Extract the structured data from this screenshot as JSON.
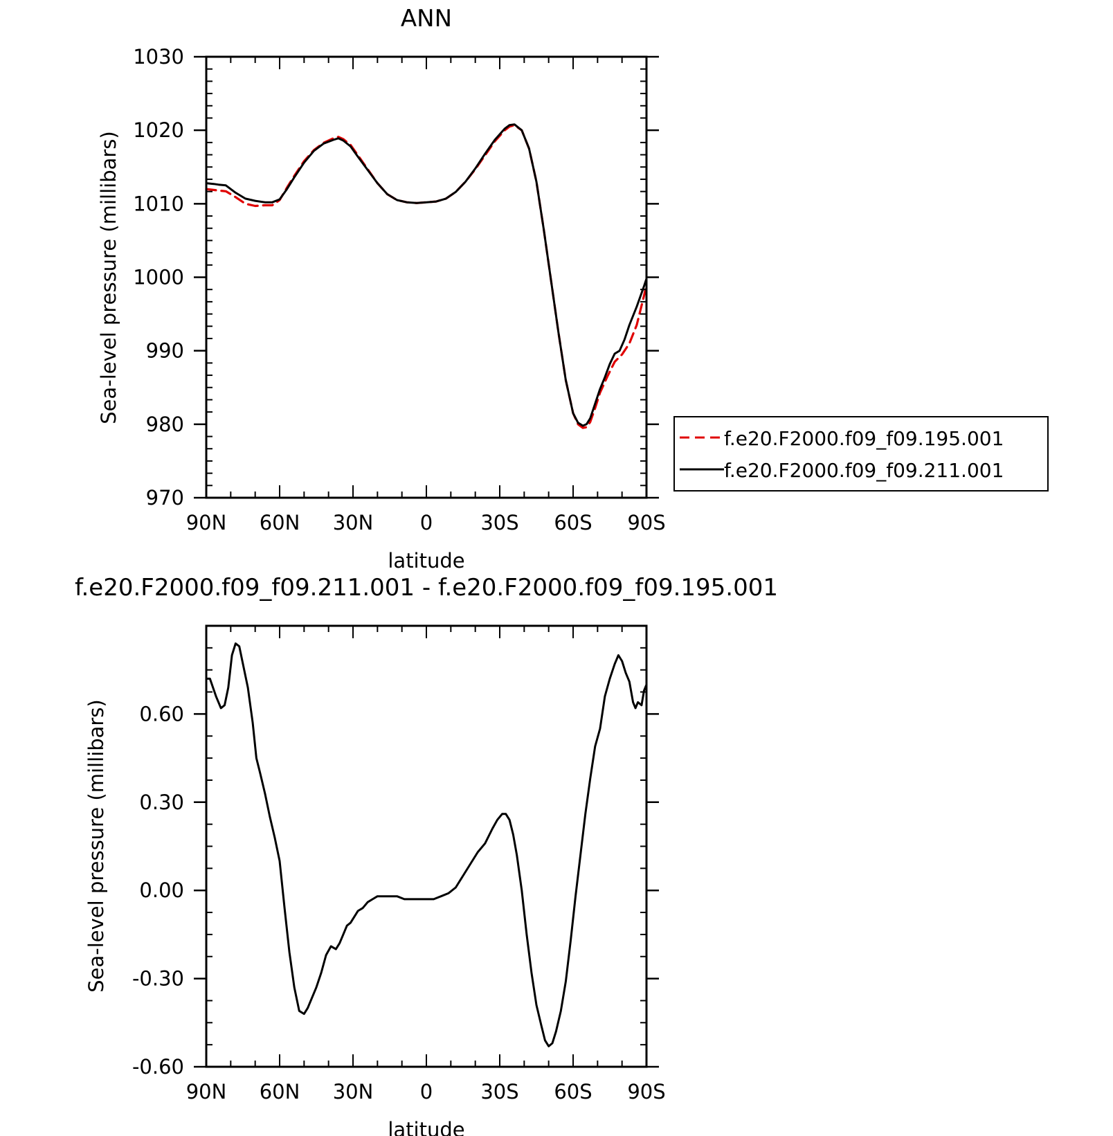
{
  "chart_data": [
    {
      "type": "line",
      "title": "ANN",
      "xlabel": "latitude",
      "ylabel": "Sea-level pressure (millibars)",
      "xlim": [
        90,
        -90
      ],
      "ylim": [
        970,
        1030
      ],
      "xticks": [
        {
          "value": 90,
          "label": "90N"
        },
        {
          "value": 60,
          "label": "60N"
        },
        {
          "value": 30,
          "label": "30N"
        },
        {
          "value": 0,
          "label": "0"
        },
        {
          "value": -30,
          "label": "30S"
        },
        {
          "value": -60,
          "label": "60S"
        },
        {
          "value": -90,
          "label": "90S"
        }
      ],
      "yticks": [
        {
          "value": 1030,
          "label": "1030"
        },
        {
          "value": 1020,
          "label": "1020"
        },
        {
          "value": 1010,
          "label": "1010"
        },
        {
          "value": 1000,
          "label": "1000"
        },
        {
          "value": 990,
          "label": "990"
        },
        {
          "value": 980,
          "label": "980"
        },
        {
          "value": 970,
          "label": "970"
        }
      ],
      "legend_position": "right",
      "series": [
        {
          "name": "f.e20.F2000.f09_f09.195.001",
          "color": "#e00000",
          "dash": "dashed",
          "x": [
            90,
            85,
            82,
            78,
            74,
            70,
            66,
            63,
            60,
            57,
            54,
            50,
            46,
            42,
            38,
            36,
            34,
            31,
            28,
            24,
            20,
            16,
            12,
            8,
            4,
            0,
            -4,
            -8,
            -12,
            -16,
            -20,
            -24,
            -28,
            -32,
            -34,
            -36,
            -39,
            -42,
            -45,
            -48,
            -51,
            -54,
            -57,
            -60,
            -62,
            -64,
            -65.5,
            -67,
            -69,
            -71,
            -74,
            -77,
            -80,
            -83,
            -86,
            -89,
            -90
          ],
          "y": [
            1012.0,
            1011.8,
            1011.7,
            1010.9,
            1010.0,
            1009.7,
            1009.8,
            1009.8,
            1010.5,
            1012.2,
            1013.8,
            1015.8,
            1017.3,
            1018.3,
            1018.9,
            1019.1,
            1018.8,
            1018.0,
            1016.6,
            1014.7,
            1012.8,
            1011.3,
            1010.5,
            1010.2,
            1010.1,
            1010.2,
            1010.3,
            1010.7,
            1011.6,
            1013.0,
            1014.7,
            1016.6,
            1018.5,
            1020.0,
            1020.5,
            1020.7,
            1020.0,
            1017.5,
            1013.0,
            1006.5,
            999.5,
            992.5,
            986.0,
            981.5,
            980.0,
            979.5,
            979.6,
            980.3,
            982.2,
            984.3,
            986.5,
            988.5,
            989.5,
            991.0,
            993.5,
            997.5,
            999.0
          ]
        },
        {
          "name": "f.e20.F2000.f09_f09.211.001",
          "color": "#000000",
          "dash": "solid",
          "x": [
            90,
            87,
            85,
            82,
            78,
            74,
            70,
            66,
            63,
            60,
            57,
            54,
            50,
            46,
            42,
            38,
            36,
            34,
            31,
            28,
            24,
            20,
            16,
            12,
            8,
            4,
            0,
            -4,
            -8,
            -12,
            -16,
            -20,
            -24,
            -28,
            -32,
            -34,
            -36,
            -39,
            -42,
            -45,
            -48,
            -51,
            -54,
            -57,
            -60,
            -62,
            -64,
            -65.5,
            -67,
            -69,
            -71,
            -73,
            -75,
            -77,
            -79,
            -81,
            -83,
            -86,
            -89,
            -90
          ],
          "y": [
            1012.8,
            1012.7,
            1012.6,
            1012.5,
            1011.5,
            1010.7,
            1010.4,
            1010.2,
            1010.2,
            1010.6,
            1012.0,
            1013.6,
            1015.6,
            1017.2,
            1018.2,
            1018.7,
            1018.9,
            1018.6,
            1017.8,
            1016.4,
            1014.6,
            1012.8,
            1011.3,
            1010.5,
            1010.2,
            1010.1,
            1010.2,
            1010.3,
            1010.7,
            1011.6,
            1013.0,
            1014.8,
            1016.8,
            1018.7,
            1020.2,
            1020.7,
            1020.8,
            1020.0,
            1017.5,
            1013.0,
            1006.5,
            999.5,
            992.5,
            986.0,
            981.5,
            980.2,
            979.8,
            980.0,
            980.8,
            982.8,
            984.8,
            986.4,
            988.2,
            989.6,
            990.0,
            991.5,
            993.5,
            996.0,
            998.8,
            999.8
          ]
        }
      ]
    },
    {
      "type": "line",
      "title": "f.e20.F2000.f09_f09.211.001 - f.e20.F2000.f09_f09.195.001",
      "xlabel": "latitude",
      "ylabel": "Sea-level pressure (millibars)",
      "xlim": [
        90,
        -90
      ],
      "ylim": [
        -0.6,
        0.9
      ],
      "xticks": [
        {
          "value": 90,
          "label": "90N"
        },
        {
          "value": 60,
          "label": "60N"
        },
        {
          "value": 30,
          "label": "30N"
        },
        {
          "value": 0,
          "label": "0"
        },
        {
          "value": -30,
          "label": "30S"
        },
        {
          "value": -60,
          "label": "60S"
        },
        {
          "value": -90,
          "label": "90S"
        }
      ],
      "yticks": [
        {
          "value": 0.6,
          "label": "0.60"
        },
        {
          "value": 0.3,
          "label": "0.30"
        },
        {
          "value": 0.0,
          "label": "0.00"
        },
        {
          "value": -0.3,
          "label": "-0.30"
        },
        {
          "value": -0.6,
          "label": "-0.60"
        }
      ],
      "series": [
        {
          "color": "#000000",
          "dash": "solid",
          "x": [
            90,
            88.5,
            86,
            84,
            82.5,
            81,
            79.5,
            78,
            76.5,
            75,
            73,
            71,
            69.5,
            68,
            66,
            64,
            62,
            60,
            58,
            56,
            54,
            52,
            50,
            48.5,
            47,
            45,
            43,
            41,
            39,
            37,
            35.5,
            34,
            32.5,
            31,
            29.5,
            28,
            26,
            24,
            22,
            20,
            18,
            16,
            14,
            12,
            9,
            6,
            3,
            0,
            -3,
            -6,
            -9,
            -12,
            -15,
            -18,
            -21,
            -24,
            -27,
            -29,
            -31,
            -32.5,
            -34,
            -35.5,
            -37,
            -39,
            -41,
            -43,
            -45,
            -47,
            -48.5,
            -50,
            -51.5,
            -53,
            -55,
            -57,
            -59,
            -61,
            -63,
            -65,
            -67,
            -69,
            -71,
            -73,
            -75,
            -77,
            -78.5,
            -80,
            -81.5,
            -83,
            -84.5,
            -85.5,
            -86.5,
            -88,
            -89,
            -90
          ],
          "y": [
            0.72,
            0.72,
            0.66,
            0.62,
            0.63,
            0.69,
            0.8,
            0.84,
            0.83,
            0.77,
            0.69,
            0.57,
            0.45,
            0.4,
            0.33,
            0.25,
            0.18,
            0.1,
            -0.06,
            -0.21,
            -0.33,
            -0.41,
            -0.42,
            -0.4,
            -0.37,
            -0.33,
            -0.28,
            -0.22,
            -0.19,
            -0.2,
            -0.18,
            -0.15,
            -0.12,
            -0.11,
            -0.09,
            -0.07,
            -0.06,
            -0.04,
            -0.03,
            -0.02,
            -0.02,
            -0.02,
            -0.02,
            -0.02,
            -0.03,
            -0.03,
            -0.03,
            -0.03,
            -0.03,
            -0.02,
            -0.01,
            0.01,
            0.05,
            0.09,
            0.13,
            0.16,
            0.21,
            0.24,
            0.26,
            0.26,
            0.24,
            0.19,
            0.12,
            0.0,
            -0.15,
            -0.28,
            -0.39,
            -0.46,
            -0.51,
            -0.53,
            -0.52,
            -0.48,
            -0.41,
            -0.31,
            -0.17,
            -0.02,
            0.12,
            0.26,
            0.38,
            0.49,
            0.55,
            0.66,
            0.72,
            0.77,
            0.8,
            0.78,
            0.74,
            0.71,
            0.64,
            0.62,
            0.64,
            0.63,
            0.68,
            0.7
          ]
        }
      ]
    }
  ]
}
